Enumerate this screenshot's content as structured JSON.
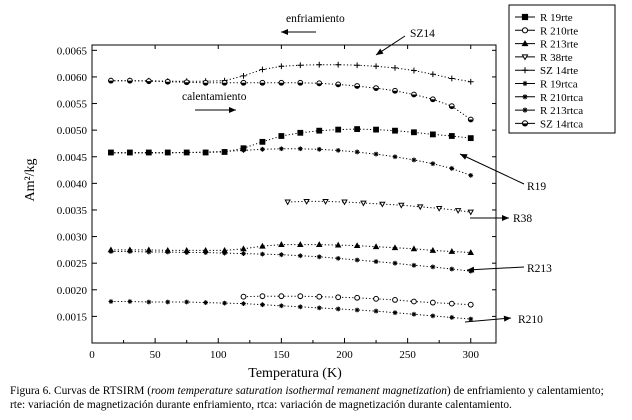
{
  "chart_data": {
    "type": "scatter",
    "xlabel": "Temperatura (K)",
    "ylabel": "Am²/kg",
    "xlim": [
      0,
      320
    ],
    "ylim": [
      0.001,
      0.0066
    ],
    "xticks": [
      "0",
      "50",
      "100",
      "150",
      "200",
      "250",
      "300"
    ],
    "yticks": [
      "0.0015",
      "0.0020",
      "0.0025",
      "0.0030",
      "0.0035",
      "0.0040",
      "0.0045",
      "0.0050",
      "0.0055",
      "0.0060",
      "0.0065"
    ],
    "series": [
      {
        "name": "R 19rte",
        "marker": "square",
        "x": [
          15,
          30,
          45,
          60,
          75,
          90,
          105,
          120,
          135,
          150,
          165,
          180,
          195,
          210,
          225,
          240,
          255,
          270,
          285,
          300
        ],
        "y": [
          0.00458,
          0.00458,
          0.00458,
          0.00458,
          0.00458,
          0.00458,
          0.00459,
          0.00466,
          0.00478,
          0.00489,
          0.00495,
          0.00499,
          0.00501,
          0.00502,
          0.00501,
          0.00499,
          0.00496,
          0.00492,
          0.00489,
          0.00485
        ]
      },
      {
        "name": "R 210rte",
        "marker": "circle-open",
        "x": [
          120,
          135,
          150,
          165,
          180,
          195,
          210,
          225,
          240,
          255,
          270,
          285,
          300
        ],
        "y": [
          0.00187,
          0.00188,
          0.00188,
          0.00188,
          0.00187,
          0.00186,
          0.00185,
          0.00183,
          0.00181,
          0.00178,
          0.00176,
          0.00174,
          0.00172
        ]
      },
      {
        "name": "R 213rte",
        "marker": "triangle-up",
        "x": [
          15,
          30,
          45,
          60,
          75,
          90,
          105,
          120,
          135,
          150,
          165,
          180,
          195,
          210,
          225,
          240,
          255,
          270,
          285,
          300
        ],
        "y": [
          0.00275,
          0.00275,
          0.00275,
          0.00274,
          0.00274,
          0.00274,
          0.00274,
          0.00277,
          0.00282,
          0.00285,
          0.00285,
          0.00285,
          0.00284,
          0.00283,
          0.00281,
          0.00279,
          0.00277,
          0.00274,
          0.00272,
          0.0027
        ]
      },
      {
        "name": "R 38rte",
        "marker": "triangle-down",
        "x": [
          155,
          170,
          185,
          200,
          215,
          230,
          245,
          260,
          275,
          290,
          300
        ],
        "y": [
          0.00365,
          0.00366,
          0.00366,
          0.00365,
          0.00363,
          0.00361,
          0.00359,
          0.00356,
          0.00353,
          0.00349,
          0.00346
        ]
      },
      {
        "name": "SZ 14rte",
        "marker": "plus",
        "x": [
          15,
          30,
          45,
          60,
          75,
          90,
          105,
          120,
          135,
          150,
          165,
          180,
          195,
          210,
          225,
          240,
          255,
          270,
          285,
          300
        ],
        "y": [
          0.00593,
          0.00593,
          0.00593,
          0.00592,
          0.00592,
          0.00592,
          0.00593,
          0.00602,
          0.00614,
          0.0062,
          0.00622,
          0.00623,
          0.00623,
          0.00622,
          0.0062,
          0.00617,
          0.00612,
          0.00605,
          0.00597,
          0.00591
        ]
      },
      {
        "name": "R 19rtca",
        "marker": "star",
        "x": [
          15,
          30,
          45,
          60,
          75,
          90,
          105,
          120,
          135,
          150,
          165,
          180,
          195,
          210,
          225,
          240,
          255,
          270,
          285,
          300
        ],
        "y": [
          0.00457,
          0.00457,
          0.00457,
          0.00457,
          0.00458,
          0.00459,
          0.0046,
          0.00462,
          0.00464,
          0.00465,
          0.00465,
          0.00464,
          0.00462,
          0.00459,
          0.00455,
          0.0045,
          0.00444,
          0.00437,
          0.00428,
          0.00415
        ]
      },
      {
        "name": "R 210rtca",
        "marker": "star",
        "x": [
          15,
          30,
          45,
          60,
          75,
          90,
          105,
          120,
          135,
          150,
          165,
          180,
          195,
          210,
          225,
          240,
          255,
          270,
          285,
          300
        ],
        "y": [
          0.00178,
          0.00178,
          0.00177,
          0.00177,
          0.00177,
          0.00176,
          0.00175,
          0.00174,
          0.00172,
          0.0017,
          0.00168,
          0.00166,
          0.00164,
          0.00162,
          0.0016,
          0.00157,
          0.00154,
          0.00151,
          0.00148,
          0.00145
        ]
      },
      {
        "name": "R 213rtca",
        "marker": "star",
        "x": [
          15,
          30,
          45,
          60,
          75,
          90,
          105,
          120,
          135,
          150,
          165,
          180,
          195,
          210,
          225,
          240,
          255,
          270,
          285,
          300
        ],
        "y": [
          0.00272,
          0.00272,
          0.00271,
          0.00271,
          0.0027,
          0.0027,
          0.00269,
          0.00268,
          0.00267,
          0.00266,
          0.00264,
          0.00262,
          0.00259,
          0.00256,
          0.00253,
          0.0025,
          0.00246,
          0.00243,
          0.00239,
          0.00235
        ]
      },
      {
        "name": "SZ 14rtca",
        "marker": "circle-half",
        "x": [
          15,
          30,
          45,
          60,
          75,
          90,
          105,
          120,
          135,
          150,
          165,
          180,
          195,
          210,
          225,
          240,
          255,
          270,
          285,
          300
        ],
        "y": [
          0.00593,
          0.00593,
          0.00592,
          0.00591,
          0.0059,
          0.00589,
          0.00589,
          0.00589,
          0.00589,
          0.00589,
          0.00589,
          0.00588,
          0.00586,
          0.00583,
          0.00579,
          0.00574,
          0.00567,
          0.00558,
          0.00545,
          0.0052
        ]
      }
    ],
    "annotations": [
      {
        "text": "enfriamiento"
      },
      {
        "text": "calentamiento"
      },
      {
        "text": "SZ14"
      },
      {
        "text": "R19"
      },
      {
        "text": "R38"
      },
      {
        "text": "R213"
      },
      {
        "text": "R210"
      }
    ],
    "legend": "top-right"
  },
  "caption": {
    "line1_a": "Figura 6. Curvas de RTSIRM (",
    "line1_italic": "room temperature saturation isothermal remanent magnetization",
    "line1_b": ") de enfriamiento y calentamiento;",
    "line2": "rte: variación de magnetización durante enfriamiento, rtca: variación de magnetización durante calentamiento."
  }
}
